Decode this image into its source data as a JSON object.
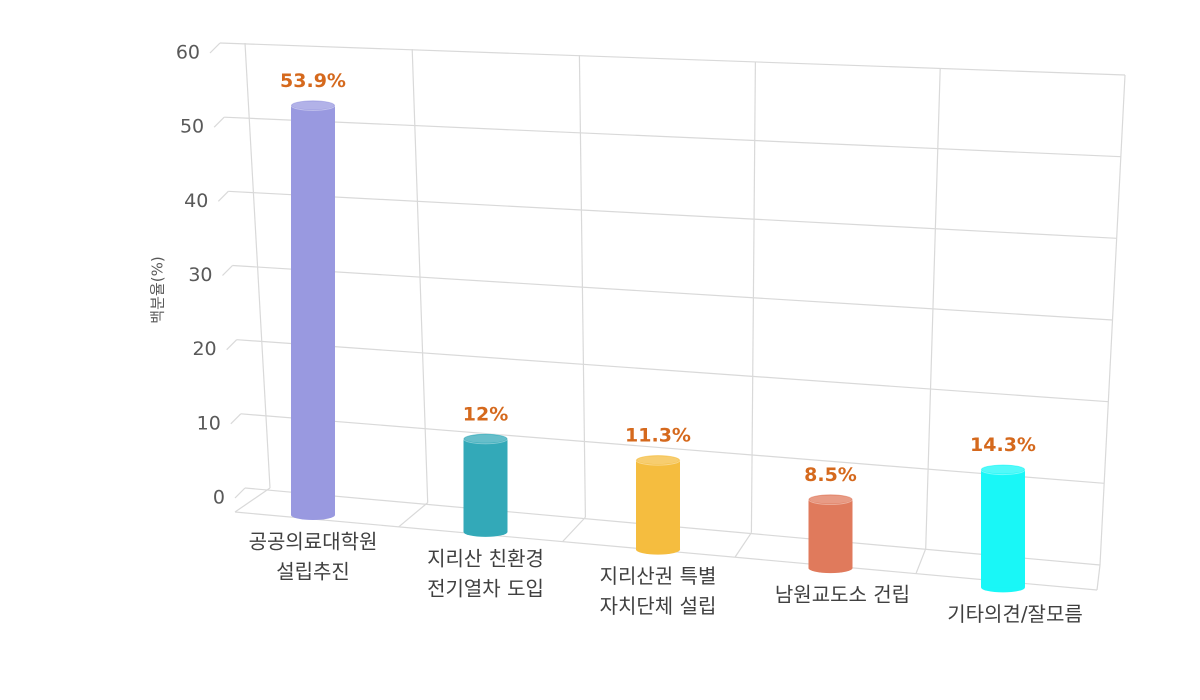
{
  "chart_data": {
    "type": "bar",
    "y_label": "백분율(%)",
    "categories": [
      [
        "공공의료대학원",
        "설립추진"
      ],
      [
        "지리산 친환경",
        "전기열차 도입"
      ],
      [
        "지리산권 특별",
        "자치단체 설립"
      ],
      [
        "남원교도소 건립"
      ],
      [
        "기타의견/잘모름"
      ]
    ],
    "values": [
      53.9,
      12,
      11.3,
      8.5,
      14.3
    ],
    "value_labels": [
      "53.9%",
      "12%",
      "11.3%",
      "8.5%",
      "14.3%"
    ],
    "colors": [
      "#9999e0",
      "#33a9b8",
      "#f5bd3f",
      "#e07a5c",
      "#19f7f7"
    ],
    "ylim": [
      0,
      60
    ],
    "yticks": [
      0,
      10,
      20,
      30,
      40,
      50,
      60
    ],
    "grid": true
  }
}
